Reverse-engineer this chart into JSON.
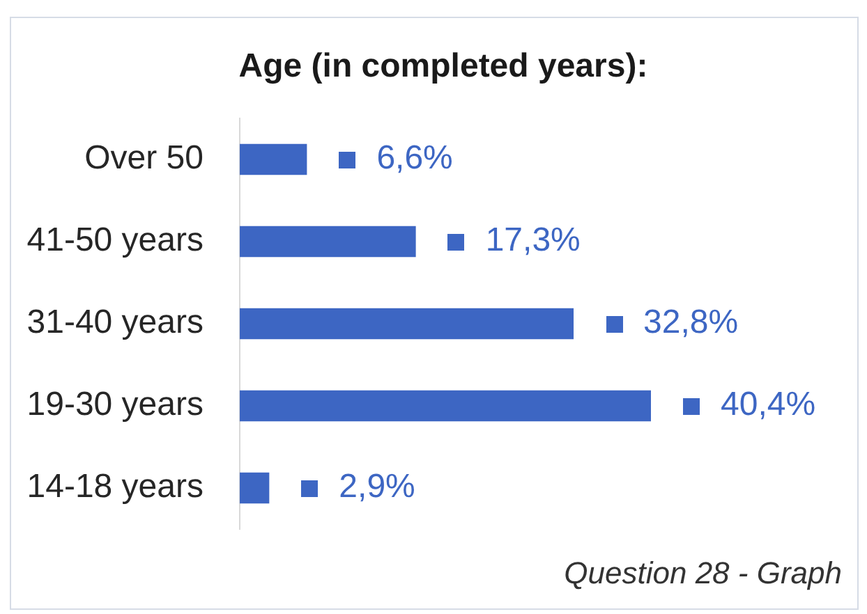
{
  "chart_data": {
    "type": "bar",
    "orientation": "horizontal",
    "title": "Age (in completed years):",
    "categories": [
      "Over 50",
      "41-50 years",
      "31-40 years",
      "19-30 years",
      "14-18 years"
    ],
    "values": [
      6.6,
      17.3,
      32.8,
      40.4,
      2.9
    ],
    "value_labels": [
      "6,6%",
      "17,3%",
      "32,8%",
      "40,4%",
      "2,9%"
    ],
    "color": "#3d66c3",
    "tick_labels": "y",
    "annotations": [
      "Question 28 - Graph"
    ]
  }
}
